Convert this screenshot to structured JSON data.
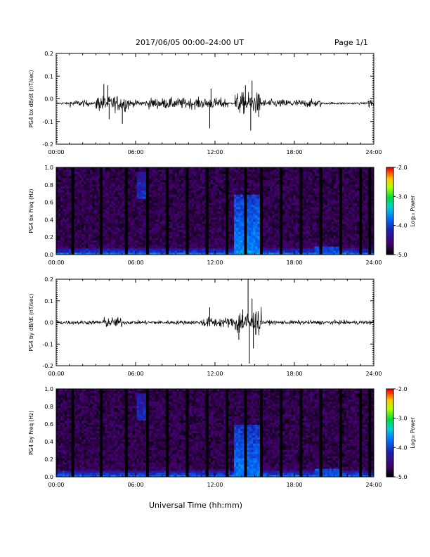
{
  "header": {
    "title": "2017/06/05  00:00–24:00 UT",
    "page": "Page 1/1"
  },
  "footer": {
    "xlabel": "Universal Time (hh:mm)"
  },
  "chart_data": [
    {
      "type": "line",
      "ylabel": "PG4 bx dB/dt (nT/sec)",
      "xlim": [
        0,
        24
      ],
      "ylim": [
        -0.2,
        0.2
      ],
      "x_ticks": [
        "00:00",
        "06:00",
        "12:00",
        "18:00",
        "24:00"
      ],
      "y_ticks": [
        "-0.2",
        "-0.1",
        "0.0",
        "0.1",
        "0.2"
      ],
      "baseline": -0.02,
      "activity": [
        {
          "x": [
            1.0,
            2.5
          ],
          "amp": 0.012
        },
        {
          "x": [
            3.0,
            5.5
          ],
          "amp": 0.03
        },
        {
          "x": [
            5.5,
            7.0
          ],
          "amp": 0.012
        },
        {
          "x": [
            7.0,
            13.0
          ],
          "amp": 0.02
        },
        {
          "x": [
            13.5,
            15.5
          ],
          "amp": 0.04
        },
        {
          "x": [
            15.5,
            20.0
          ],
          "amp": 0.015
        },
        {
          "x": [
            23.5,
            24.0
          ],
          "amp": 0.02
        }
      ],
      "spikes": [
        {
          "x": 3.6,
          "y": 0.065
        },
        {
          "x": 3.9,
          "y": 0.06
        },
        {
          "x": 4.0,
          "y": -0.09
        },
        {
          "x": 5.0,
          "y": -0.11
        },
        {
          "x": 11.6,
          "y": -0.13
        },
        {
          "x": 11.7,
          "y": 0.045
        },
        {
          "x": 14.3,
          "y": 0.06
        },
        {
          "x": 14.7,
          "y": -0.14
        },
        {
          "x": 14.8,
          "y": 0.08
        },
        {
          "x": 15.3,
          "y": -0.08
        },
        {
          "x": 24.0,
          "y": 0.03
        }
      ]
    },
    {
      "type": "heatmap",
      "ylabel": "PG4 bx Freq (Hz)",
      "xlim": [
        0,
        24
      ],
      "ylim": [
        0,
        1
      ],
      "x_ticks": [
        "00:00",
        "06:00",
        "12:00",
        "18:00",
        "24:00"
      ],
      "y_ticks": [
        "0.0",
        "0.2",
        "0.4",
        "0.6",
        "0.8",
        "1.0"
      ],
      "colorbar": {
        "label": "Log₁₀ Power",
        "ticks": [
          "-2.0",
          "-3.0",
          "-4.0",
          "-5.0"
        ],
        "range": [
          -5,
          -2
        ]
      },
      "data_gaps_hours": [
        1.25,
        3.4,
        5.3,
        6.9,
        8.4,
        9.9,
        11.4,
        12.9,
        14.3,
        15.5,
        17.0,
        18.5,
        20.0,
        21.5,
        23.0,
        23.7
      ],
      "features": [
        {
          "x": [
            6.1,
            6.8
          ],
          "f": [
            0.65,
            0.95
          ],
          "level": -4.1
        },
        {
          "x": [
            13.5,
            15.5
          ],
          "f": [
            0.0,
            0.7
          ],
          "level": -3.6
        },
        {
          "x": [
            19.5,
            21.5
          ],
          "f": [
            0.0,
            0.1
          ],
          "level": -3.9
        }
      ]
    },
    {
      "type": "line",
      "ylabel": "PG4 by dB/dt (nT/sec)",
      "xlim": [
        0,
        24
      ],
      "ylim": [
        -0.2,
        0.2
      ],
      "x_ticks": [
        "00:00",
        "06:00",
        "12:00",
        "18:00",
        "24:00"
      ],
      "y_ticks": [
        "-0.2",
        "-0.1",
        "0.0",
        "0.1",
        "0.2"
      ],
      "baseline": 0.0,
      "activity": [
        {
          "x": [
            0.0,
            3.5
          ],
          "amp": 0.008
        },
        {
          "x": [
            3.5,
            5.0
          ],
          "amp": 0.02
        },
        {
          "x": [
            5.0,
            11.0
          ],
          "amp": 0.008
        },
        {
          "x": [
            11.0,
            13.5
          ],
          "amp": 0.02
        },
        {
          "x": [
            13.5,
            15.5
          ],
          "amp": 0.05
        },
        {
          "x": [
            15.5,
            24.0
          ],
          "amp": 0.008
        }
      ],
      "spikes": [
        {
          "x": 11.6,
          "y": 0.07
        },
        {
          "x": 13.8,
          "y": -0.08
        },
        {
          "x": 14.1,
          "y": 0.06
        },
        {
          "x": 14.5,
          "y": 0.2
        },
        {
          "x": 14.6,
          "y": -0.19
        },
        {
          "x": 14.8,
          "y": 0.11
        },
        {
          "x": 14.9,
          "y": -0.12
        },
        {
          "x": 15.1,
          "y": 0.05
        }
      ]
    },
    {
      "type": "heatmap",
      "ylabel": "PG4 by Freq (Hz)",
      "xlim": [
        0,
        24
      ],
      "ylim": [
        0,
        1
      ],
      "x_ticks": [
        "00:00",
        "06:00",
        "12:00",
        "18:00",
        "24:00"
      ],
      "y_ticks": [
        "0.0",
        "0.2",
        "0.4",
        "0.6",
        "0.8",
        "1.0"
      ],
      "colorbar": {
        "label": "Log₁₀ Power",
        "ticks": [
          "-2.0",
          "-3.0",
          "-4.0",
          "-5.0"
        ],
        "range": [
          -5,
          -2
        ]
      },
      "data_gaps_hours": [
        1.25,
        3.4,
        5.3,
        6.9,
        8.4,
        9.9,
        11.4,
        12.9,
        14.3,
        15.5,
        17.0,
        18.5,
        20.0,
        21.5,
        23.0,
        23.7
      ],
      "features": [
        {
          "x": [
            6.1,
            6.8
          ],
          "f": [
            0.65,
            0.95
          ],
          "level": -4.1
        },
        {
          "x": [
            13.5,
            15.5
          ],
          "f": [
            0.0,
            0.6
          ],
          "level": -3.7
        },
        {
          "x": [
            19.5,
            21.5
          ],
          "f": [
            0.0,
            0.1
          ],
          "level": -3.9
        }
      ]
    }
  ]
}
